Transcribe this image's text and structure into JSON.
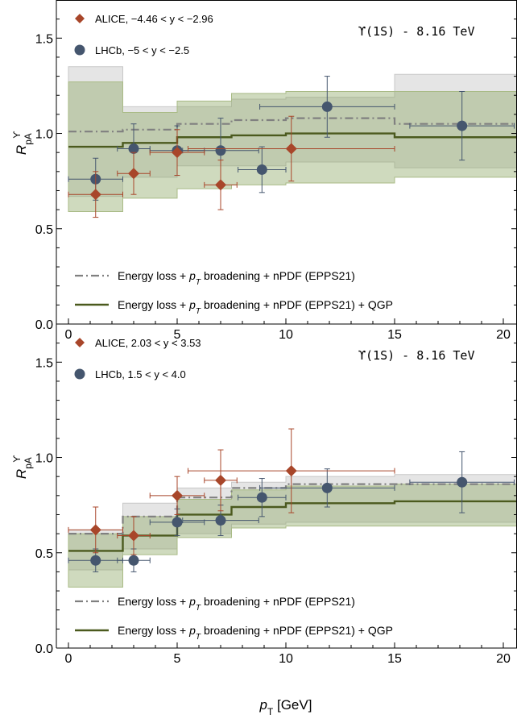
{
  "colors": {
    "alice": "#a8462a",
    "lhcb": "#45566e",
    "band_nopgp": "#dcdcdc",
    "band_qgp": "#8da764",
    "line_nopgp": "#808080",
    "line_qgp": "#4b5a1e"
  },
  "xlabel": "p_T [GeV]",
  "chart_data": [
    {
      "type": "line",
      "tag": "ϒ(1S) - 8.16 TeV",
      "ylabel": "R_pA^ϒ",
      "xlim": [
        -1,
        20.5
      ],
      "ylim": [
        0,
        1.7
      ],
      "x_ticks": [
        "0",
        "5",
        "10",
        "15",
        "20"
      ],
      "y_ticks": [
        "0.0",
        "0.5",
        "1.0",
        "1.5"
      ],
      "bin_edges": [
        0,
        2.5,
        5,
        7.5,
        10,
        15,
        20
      ],
      "legend": {
        "alice": "ALICE, −4.46 < y < −2.96",
        "lhcb": "LHCb, −5 < y < −2.5",
        "model_a": "Energy loss + p_T broadening + nPDF (EPPS21)",
        "model_b": "Energy loss + p_T broadening + nPDF (EPPS21) + QGP"
      },
      "series": [
        {
          "key": "model_a",
          "name": "Energy loss + p_T broadening + nPDF (EPPS21)",
          "central": [
            1.01,
            1.02,
            1.05,
            1.07,
            1.08,
            1.05
          ],
          "low": [
            0.67,
            0.77,
            0.83,
            0.83,
            0.85,
            0.82
          ],
          "high": [
            1.35,
            1.14,
            1.14,
            1.18,
            1.19,
            1.31
          ]
        },
        {
          "key": "model_b",
          "name": "Energy loss + p_T broadening + nPDF (EPPS21) + QGP",
          "central": [
            0.93,
            0.95,
            0.98,
            0.99,
            1.0,
            0.98
          ],
          "low": [
            0.59,
            0.66,
            0.71,
            0.73,
            0.74,
            0.77
          ],
          "high": [
            1.27,
            1.11,
            1.17,
            1.21,
            1.22,
            1.22
          ]
        }
      ],
      "alice_points": [
        {
          "x": 1.25,
          "y": 0.68,
          "xerr": 1.25,
          "yerr": 0.12
        },
        {
          "x": 3.0,
          "y": 0.79,
          "xerr": 0.75,
          "yerr": 0.11
        },
        {
          "x": 5.0,
          "y": 0.9,
          "xerr": 1.25,
          "yerr": 0.12
        },
        {
          "x": 7.0,
          "y": 0.73,
          "xerr": 0.75,
          "yerr": 0.13
        },
        {
          "x": 10.25,
          "y": 0.92,
          "xerr": 4.75,
          "yerr": 0.17
        }
      ],
      "lhcb_points": [
        {
          "x": 1.25,
          "y": 0.76,
          "xerr": 1.25,
          "yerr": 0.11
        },
        {
          "x": 3.0,
          "y": 0.92,
          "xerr": 0.75,
          "yerr": 0.13
        },
        {
          "x": 5.0,
          "y": 0.91,
          "xerr": 1.25,
          "yerr": 0.13
        },
        {
          "x": 7.0,
          "y": 0.91,
          "xerr": 1.75,
          "yerr": 0.17
        },
        {
          "x": 8.9,
          "y": 0.81,
          "xerr": 1.1,
          "yerr": 0.12
        },
        {
          "x": 11.9,
          "y": 1.14,
          "xerr": 3.1,
          "yerr": 0.16
        },
        {
          "x": 18.1,
          "y": 1.04,
          "xerr": 2.4,
          "yerr": 0.18
        }
      ]
    },
    {
      "type": "line",
      "tag": "ϒ(1S) - 8.16 TeV",
      "ylabel": "R_pA^ϒ",
      "xlim": [
        -1,
        20.5
      ],
      "ylim": [
        0,
        1.7
      ],
      "x_ticks": [
        "0",
        "5",
        "10",
        "15",
        "20"
      ],
      "y_ticks": [
        "0.0",
        "0.5",
        "1.0",
        "1.5"
      ],
      "bin_edges": [
        0,
        2.5,
        5,
        7.5,
        10,
        15,
        20
      ],
      "legend": {
        "alice": "ALICE, 2.03 < y < 3.53",
        "lhcb": "LHCb, 1.5 < y < 4.0",
        "model_a": "Energy loss + p_T broadening + nPDF (EPPS21)",
        "model_b": "Energy loss + p_T broadening + nPDF (EPPS21) + QGP"
      },
      "series": [
        {
          "key": "model_a",
          "name": "Energy loss + p_T broadening + nPDF (EPPS21)",
          "central": [
            0.6,
            0.69,
            0.79,
            0.84,
            0.86,
            0.86
          ],
          "low": [
            0.41,
            0.52,
            0.6,
            0.65,
            0.66,
            0.66
          ],
          "high": [
            0.62,
            0.76,
            0.84,
            0.87,
            0.9,
            0.91
          ]
        },
        {
          "key": "model_b",
          "name": "Energy loss + p_T broadening + nPDF (EPPS21) + QGP",
          "central": [
            0.51,
            0.59,
            0.7,
            0.74,
            0.76,
            0.77
          ],
          "low": [
            0.32,
            0.49,
            0.58,
            0.63,
            0.64,
            0.64
          ],
          "high": [
            0.6,
            0.69,
            0.78,
            0.83,
            0.85,
            0.86
          ]
        }
      ],
      "alice_points": [
        {
          "x": 1.25,
          "y": 0.62,
          "xerr": 1.25,
          "yerr": 0.12
        },
        {
          "x": 3.0,
          "y": 0.59,
          "xerr": 0.75,
          "yerr": 0.1
        },
        {
          "x": 5.0,
          "y": 0.8,
          "xerr": 1.25,
          "yerr": 0.1
        },
        {
          "x": 7.0,
          "y": 0.88,
          "xerr": 0.75,
          "yerr": 0.16
        },
        {
          "x": 10.25,
          "y": 0.93,
          "xerr": 4.75,
          "yerr": 0.22
        }
      ],
      "lhcb_points": [
        {
          "x": 1.25,
          "y": 0.46,
          "xerr": 1.25,
          "yerr": 0.06
        },
        {
          "x": 3.0,
          "y": 0.46,
          "xerr": 0.75,
          "yerr": 0.06
        },
        {
          "x": 5.0,
          "y": 0.66,
          "xerr": 1.25,
          "yerr": 0.07
        },
        {
          "x": 7.0,
          "y": 0.67,
          "xerr": 1.75,
          "yerr": 0.08
        },
        {
          "x": 8.9,
          "y": 0.79,
          "xerr": 1.1,
          "yerr": 0.1
        },
        {
          "x": 11.9,
          "y": 0.84,
          "xerr": 3.1,
          "yerr": 0.1
        },
        {
          "x": 18.1,
          "y": 0.87,
          "xerr": 2.4,
          "yerr": 0.16
        }
      ]
    }
  ]
}
